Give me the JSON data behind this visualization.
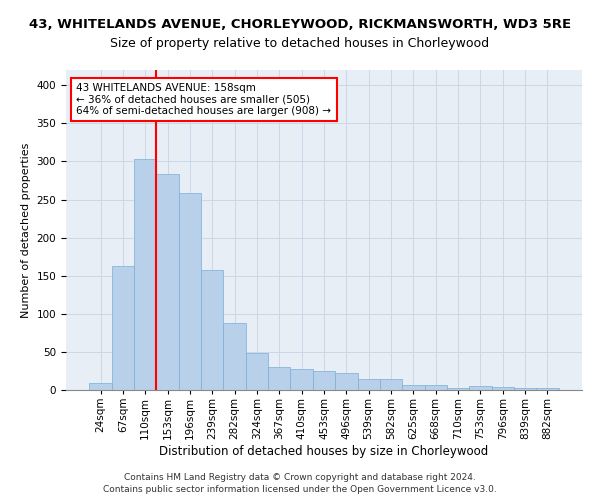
{
  "title1": "43, WHITELANDS AVENUE, CHORLEYWOOD, RICKMANSWORTH, WD3 5RE",
  "title2": "Size of property relative to detached houses in Chorleywood",
  "xlabel": "Distribution of detached houses by size in Chorleywood",
  "ylabel": "Number of detached properties",
  "footer1": "Contains HM Land Registry data © Crown copyright and database right 2024.",
  "footer2": "Contains public sector information licensed under the Open Government Licence v3.0.",
  "categories": [
    "24sqm",
    "67sqm",
    "110sqm",
    "153sqm",
    "196sqm",
    "239sqm",
    "282sqm",
    "324sqm",
    "367sqm",
    "410sqm",
    "453sqm",
    "496sqm",
    "539sqm",
    "582sqm",
    "625sqm",
    "668sqm",
    "710sqm",
    "753sqm",
    "796sqm",
    "839sqm",
    "882sqm"
  ],
  "values": [
    9,
    163,
    303,
    283,
    258,
    158,
    88,
    48,
    30,
    28,
    25,
    22,
    14,
    14,
    7,
    6,
    3,
    5,
    4,
    3,
    3
  ],
  "bar_color": "#b8d0ea",
  "bar_edge_color": "#7aafd4",
  "annotation_box_text": "43 WHITELANDS AVENUE: 158sqm\n← 36% of detached houses are smaller (505)\n64% of semi-detached houses are larger (908) →",
  "annotation_box_color": "white",
  "annotation_box_edge_color": "red",
  "vline_color": "red",
  "grid_color": "#ccd8e8",
  "bg_color": "#e8eef6",
  "ylim": [
    0,
    420
  ],
  "yticks": [
    0,
    50,
    100,
    150,
    200,
    250,
    300,
    350,
    400
  ],
  "title1_fontsize": 9.5,
  "title2_fontsize": 9,
  "xlabel_fontsize": 8.5,
  "ylabel_fontsize": 8,
  "tick_fontsize": 7.5,
  "annotation_fontsize": 7.5,
  "footer_fontsize": 6.5
}
